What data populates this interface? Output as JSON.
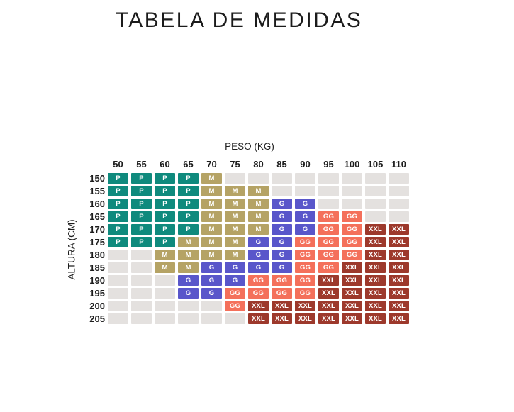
{
  "page": {
    "background": "#FFFFFF"
  },
  "chart_data": {
    "type": "heatmap",
    "title": "TABELA DE MEDIDAS",
    "xlabel": "PESO (KG)",
    "ylabel": "ALTURA (CM)",
    "x_categories": [
      "50",
      "55",
      "60",
      "65",
      "70",
      "75",
      "80",
      "85",
      "90",
      "95",
      "100",
      "105",
      "110"
    ],
    "y_categories": [
      "150",
      "155",
      "160",
      "165",
      "170",
      "175",
      "180",
      "185",
      "190",
      "195",
      "200",
      "205"
    ],
    "rows": [
      [
        "P",
        "P",
        "P",
        "P",
        "M",
        "",
        "",
        "",
        "",
        "",
        "",
        "",
        ""
      ],
      [
        "P",
        "P",
        "P",
        "P",
        "M",
        "M",
        "M",
        "",
        "",
        "",
        "",
        "",
        ""
      ],
      [
        "P",
        "P",
        "P",
        "P",
        "M",
        "M",
        "M",
        "G",
        "G",
        "",
        "",
        "",
        ""
      ],
      [
        "P",
        "P",
        "P",
        "P",
        "M",
        "M",
        "M",
        "G",
        "G",
        "GG",
        "GG",
        "",
        ""
      ],
      [
        "P",
        "P",
        "P",
        "P",
        "M",
        "M",
        "M",
        "G",
        "G",
        "GG",
        "GG",
        "XXL",
        "XXL"
      ],
      [
        "P",
        "P",
        "P",
        "M",
        "M",
        "M",
        "G",
        "G",
        "GG",
        "GG",
        "GG",
        "XXL",
        "XXL"
      ],
      [
        "",
        "",
        "M",
        "M",
        "M",
        "M",
        "G",
        "G",
        "GG",
        "GG",
        "GG",
        "XXL",
        "XXL"
      ],
      [
        "",
        "",
        "M",
        "M",
        "G",
        "G",
        "G",
        "G",
        "GG",
        "GG",
        "XXL",
        "XXL",
        "XXL"
      ],
      [
        "",
        "",
        "",
        "G",
        "G",
        "G",
        "GG",
        "GG",
        "GG",
        "XXL",
        "XXL",
        "XXL",
        "XXL"
      ],
      [
        "",
        "",
        "",
        "G",
        "G",
        "GG",
        "GG",
        "GG",
        "GG",
        "XXL",
        "XXL",
        "XXL",
        "XXL"
      ],
      [
        "",
        "",
        "",
        "",
        "",
        "GG",
        "XXL",
        "XXL",
        "XXL",
        "XXL",
        "XXL",
        "XXL",
        "XXL"
      ],
      [
        "",
        "",
        "",
        "",
        "",
        "",
        "XXL",
        "XXL",
        "XXL",
        "XXL",
        "XXL",
        "XXL",
        "XXL"
      ]
    ],
    "size_colors": {
      "P": "#0F8A7D",
      "M": "#B5A365",
      "G": "#5956CA",
      "GG": "#F4705B",
      "XXL": "#9D392C"
    },
    "empty_color": "#E4E1DF",
    "cell_text_color": "#FFFFFF",
    "axis_text_color": "#1D1D1D",
    "legend_position": "none",
    "grid_lines": "off"
  }
}
